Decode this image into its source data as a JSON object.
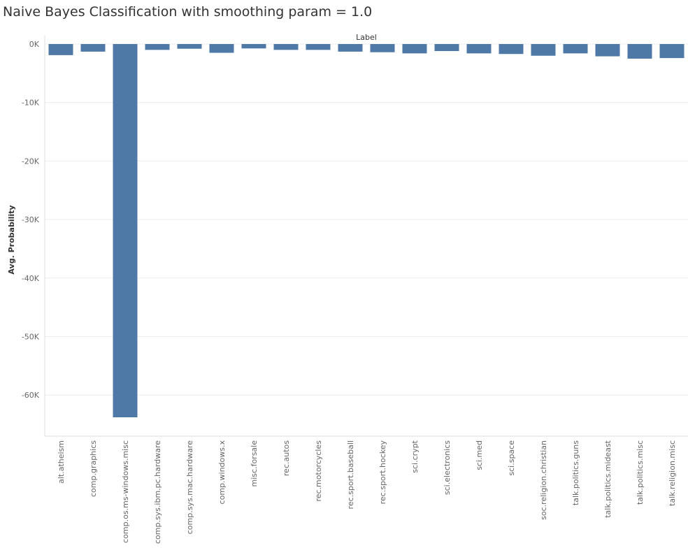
{
  "title": "Naive Bayes Classification with smoothing param = 1.0",
  "chart_data": {
    "type": "bar",
    "title": "Naive Bayes Classification with smoothing param = 1.0",
    "xlabel": "Label",
    "ylabel": "Avg. Probability",
    "xlabel_position": "top",
    "ylim": [
      -67000,
      1000
    ],
    "yticks": [
      0,
      -10000,
      -20000,
      -30000,
      -40000,
      -50000,
      -60000
    ],
    "ytick_labels": [
      "0K",
      "-10K",
      "-20K",
      "-30K",
      "-40K",
      "-50K",
      "-60K"
    ],
    "grid": true,
    "bar_color": "#4e79a7",
    "categories": [
      "alt.atheism",
      "comp.graphics",
      "comp.os.ms-windows.misc",
      "comp.sys.ibm.pc.hardware",
      "comp.sys.mac.hardware",
      "comp.windows.x",
      "misc.forsale",
      "rec.autos",
      "rec.motorcycles",
      "rec.sport.baseball",
      "rec.sport.hockey",
      "sci.crypt",
      "sci.electronics",
      "sci.med",
      "sci.space",
      "soc.religion.christian",
      "talk.politics.guns",
      "talk.politics.mideast",
      "talk.politics.misc",
      "talk.religion.misc"
    ],
    "values": [
      -1900,
      -1300,
      -63800,
      -1000,
      -800,
      -1500,
      -750,
      -1000,
      -1000,
      -1300,
      -1400,
      -1600,
      -1200,
      -1600,
      -1700,
      -2000,
      -1600,
      -2100,
      -2500,
      -2400
    ]
  }
}
